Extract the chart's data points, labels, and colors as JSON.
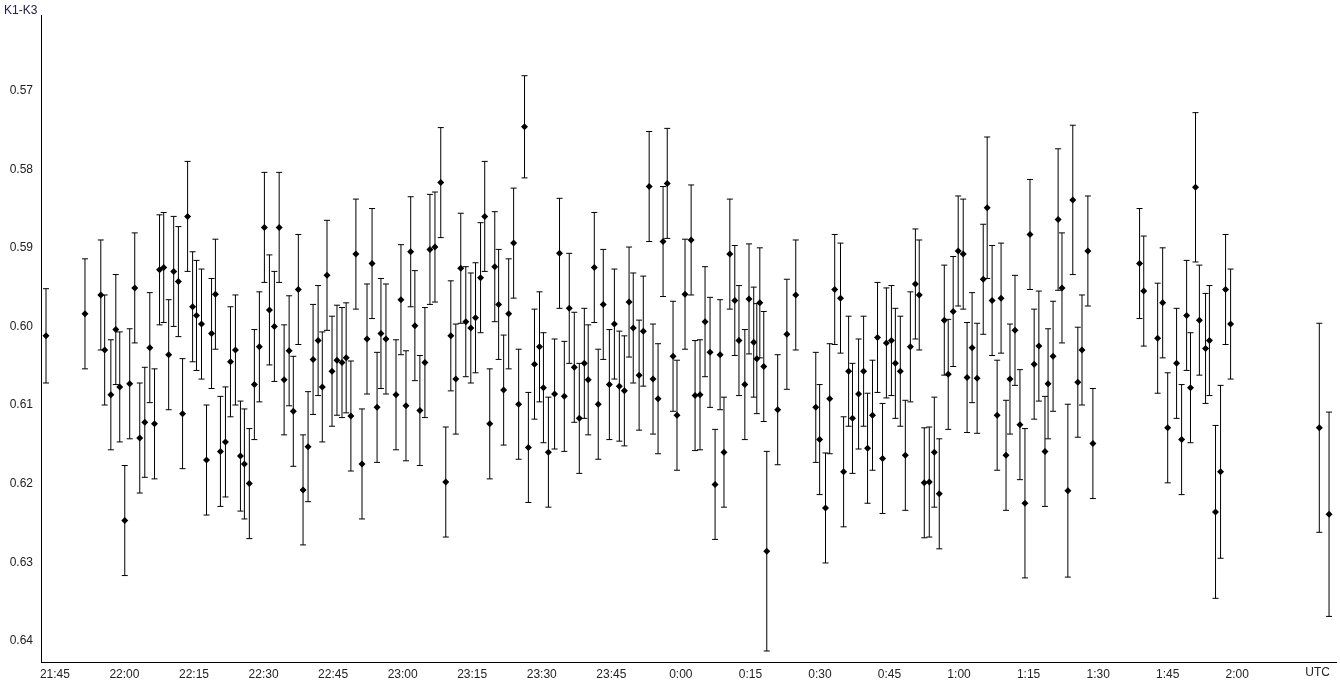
{
  "chart_data": {
    "type": "scatter",
    "ylabel": "K1-K3",
    "xlabel": "UTC",
    "color": "#000000",
    "marker": "diamond",
    "grid": false,
    "legend": false,
    "xlim": [
      "2000-01-01T21:42:00",
      "2000-01-02T02:21:18"
    ],
    "ylim": [
      0.6427,
      0.5604
    ],
    "xticks": [
      {
        "value": "2000-01-01T21:45",
        "label": "21:45"
      },
      {
        "value": "2000-01-01T22:00",
        "label": "22:00"
      },
      {
        "value": "2000-01-01T22:15",
        "label": "22:15"
      },
      {
        "value": "2000-01-01T22:30",
        "label": "22:30"
      },
      {
        "value": "2000-01-01T22:45",
        "label": "22:45"
      },
      {
        "value": "2000-01-01T23:00",
        "label": "23:00"
      },
      {
        "value": "2000-01-01T23:15",
        "label": "23:15"
      },
      {
        "value": "2000-01-01T23:30",
        "label": "23:30"
      },
      {
        "value": "2000-01-01T23:45",
        "label": "23:45"
      },
      {
        "value": "2000-01-02T00:00",
        "label": "0:00"
      },
      {
        "value": "2000-01-02T00:15",
        "label": "0:15"
      },
      {
        "value": "2000-01-02T00:30",
        "label": "0:30"
      },
      {
        "value": "2000-01-02T00:45",
        "label": "0:45"
      },
      {
        "value": "2000-01-02T01:00",
        "label": "1:00"
      },
      {
        "value": "2000-01-02T01:15",
        "label": "1:15"
      },
      {
        "value": "2000-01-02T01:30",
        "label": "1:30"
      },
      {
        "value": "2000-01-02T01:45",
        "label": "1:45"
      },
      {
        "value": "2000-01-02T02:00",
        "label": "2:00"
      }
    ],
    "yticks": [
      {
        "value": 0.57,
        "label": "0.57"
      },
      {
        "value": 0.58,
        "label": "0.58"
      },
      {
        "value": 0.59,
        "label": "0.59"
      },
      {
        "value": 0.6,
        "label": "0.60"
      },
      {
        "value": 0.61,
        "label": "0.61"
      },
      {
        "value": 0.62,
        "label": "0.62"
      },
      {
        "value": 0.63,
        "label": "0.63"
      },
      {
        "value": 0.64,
        "label": "0.64"
      }
    ],
    "x": [
      "2000-01-01T21:43:05",
      "2000-01-01T21:51:29",
      "2000-01-01T21:54:54",
      "2000-01-01T21:55:44",
      "2000-01-01T21:57:04",
      "2000-01-01T21:58:08",
      "2000-01-01T21:58:59",
      "2000-01-01T22:00:04",
      "2000-01-01T22:01:08",
      "2000-01-01T22:02:13",
      "2000-01-01T22:03:18",
      "2000-01-01T22:04:23",
      "2000-01-01T22:05:28",
      "2000-01-01T22:06:29",
      "2000-01-01T22:07:34",
      "2000-01-01T22:08:28",
      "2000-01-01T22:09:32",
      "2000-01-01T22:10:37",
      "2000-01-01T22:11:38",
      "2000-01-01T22:12:32",
      "2000-01-01T22:13:37",
      "2000-01-01T22:14:42",
      "2000-01-01T22:15:32",
      "2000-01-01T22:16:37",
      "2000-01-01T22:17:42",
      "2000-01-01T22:18:47",
      "2000-01-01T22:19:37",
      "2000-01-01T22:20:42",
      "2000-01-01T22:21:47",
      "2000-01-01T22:22:52",
      "2000-01-01T22:23:56",
      "2000-01-01T22:25:01",
      "2000-01-01T22:25:52",
      "2000-01-01T22:26:56",
      "2000-01-01T22:28:01",
      "2000-01-01T22:29:06",
      "2000-01-01T22:30:11",
      "2000-01-01T22:31:16",
      "2000-01-01T22:32:20",
      "2000-01-01T22:33:22",
      "2000-01-01T22:34:26",
      "2000-01-01T22:35:31",
      "2000-01-01T22:36:25",
      "2000-01-01T22:37:30",
      "2000-01-01T22:38:31",
      "2000-01-01T22:39:36",
      "2000-01-01T22:40:41",
      "2000-01-01T22:41:46",
      "2000-01-01T22:42:40",
      "2000-01-01T22:43:41",
      "2000-01-01T22:44:46",
      "2000-01-01T22:45:50",
      "2000-01-01T22:46:55",
      "2000-01-01T22:47:49",
      "2000-01-01T22:48:50",
      "2000-01-01T22:49:55",
      "2000-01-01T22:51:14",
      "2000-01-01T22:52:19",
      "2000-01-01T22:53:24",
      "2000-01-01T22:54:29",
      "2000-01-01T22:55:19",
      "2000-01-01T22:56:24",
      "2000-01-01T22:58:34",
      "2000-01-01T22:59:38",
      "2000-01-01T23:00:43",
      "2000-01-01T23:01:44",
      "2000-01-01T23:02:38",
      "2000-01-01T23:03:43",
      "2000-01-01T23:04:48",
      "2000-01-01T23:05:53",
      "2000-01-01T23:06:58",
      "2000-01-01T23:08:13",
      "2000-01-01T23:09:18",
      "2000-01-01T23:10:23",
      "2000-01-01T23:11:28",
      "2000-01-01T23:12:32",
      "2000-01-01T23:13:37",
      "2000-01-01T23:14:42",
      "2000-01-01T23:15:43",
      "2000-01-01T23:16:48",
      "2000-01-01T23:17:42",
      "2000-01-01T23:18:47",
      "2000-01-01T23:19:52",
      "2000-01-01T23:20:42",
      "2000-01-01T23:21:47",
      "2000-01-01T23:22:52",
      "2000-01-01T23:23:56",
      "2000-01-01T23:25:01",
      "2000-01-01T23:26:17",
      "2000-01-01T23:27:07",
      "2000-01-01T23:28:26",
      "2000-01-01T23:29:31",
      "2000-01-01T23:30:22",
      "2000-01-01T23:31:26",
      "2000-01-01T23:32:46",
      "2000-01-01T23:33:50",
      "2000-01-01T23:34:52",
      "2000-01-01T23:35:56",
      "2000-01-01T23:37:01",
      "2000-01-01T23:38:06",
      "2000-01-01T23:39:11",
      "2000-01-01T23:40:01",
      "2000-01-01T23:41:20",
      "2000-01-01T23:42:11",
      "2000-01-01T23:43:16",
      "2000-01-01T23:44:35",
      "2000-01-01T23:45:40",
      "2000-01-01T23:46:44",
      "2000-01-01T23:47:49",
      "2000-01-01T23:48:50",
      "2000-01-01T23:49:44",
      "2000-01-01T23:51:00",
      "2000-01-01T23:51:54",
      "2000-01-01T23:53:10",
      "2000-01-01T23:54:00",
      "2000-01-01T23:55:05",
      "2000-01-01T23:56:10",
      "2000-01-01T23:57:04",
      "2000-01-01T23:58:19",
      "2000-01-01T23:59:10",
      "2000-01-02T00:00:54",
      "2000-01-02T00:02:13",
      "2000-01-02T00:03:04",
      "2000-01-02T00:04:08",
      "2000-01-02T00:05:13",
      "2000-01-02T00:06:18",
      "2000-01-02T00:07:23",
      "2000-01-02T00:08:28",
      "2000-01-02T00:09:18",
      "2000-01-02T00:10:34",
      "2000-01-02T00:11:38",
      "2000-01-02T00:12:32",
      "2000-01-02T00:13:48",
      "2000-01-02T00:14:42",
      "2000-01-02T00:15:43",
      "2000-01-02T00:16:23",
      "2000-01-02T00:17:02",
      "2000-01-02T00:17:53",
      "2000-01-02T00:18:32",
      "2000-01-02T00:20:53",
      "2000-01-02T00:22:52",
      "2000-01-02T00:24:47",
      "2000-01-02T00:29:06",
      "2000-01-02T00:29:56",
      "2000-01-02T00:31:12",
      "2000-01-02T00:32:06",
      "2000-01-02T00:33:11",
      "2000-01-02T00:34:26",
      "2000-01-02T00:35:06",
      "2000-01-02T00:36:11",
      "2000-01-02T00:37:01",
      "2000-01-02T00:38:20",
      "2000-01-02T00:39:25",
      "2000-01-02T00:40:16",
      "2000-01-02T00:41:20",
      "2000-01-02T00:42:25",
      "2000-01-02T00:43:30",
      "2000-01-02T00:44:20",
      "2000-01-02T00:45:25",
      "2000-01-02T00:46:16",
      "2000-01-02T00:47:20",
      "2000-01-02T00:48:25",
      "2000-01-02T00:49:30",
      "2000-01-02T00:50:35",
      "2000-01-02T00:51:25",
      "2000-01-02T00:52:30",
      "2000-01-02T00:53:35",
      "2000-01-02T00:54:40",
      "2000-01-02T00:55:44",
      "2000-01-02T00:56:49",
      "2000-01-02T00:57:40",
      "2000-01-02T00:58:44",
      "2000-01-02T00:59:49",
      "2000-01-02T01:00:54",
      "2000-01-02T01:01:44",
      "2000-01-02T01:02:49",
      "2000-01-02T01:03:54",
      "2000-01-02T01:05:13",
      "2000-01-02T01:06:04",
      "2000-01-02T01:07:08",
      "2000-01-02T01:08:13",
      "2000-01-02T01:09:04",
      "2000-01-02T01:10:08",
      "2000-01-02T01:10:59",
      "2000-01-02T01:12:04",
      "2000-01-02T01:13:08",
      "2000-01-02T01:14:13",
      "2000-01-02T01:15:18",
      "2000-01-02T01:16:12",
      "2000-01-02T01:17:13",
      "2000-01-02T01:18:32",
      "2000-01-02T01:19:12",
      "2000-01-02T01:20:17",
      "2000-01-02T01:21:22",
      "2000-01-02T01:22:12",
      "2000-01-02T01:23:28",
      "2000-01-02T01:24:32",
      "2000-01-02T01:25:37",
      "2000-01-02T01:26:31",
      "2000-01-02T01:27:47",
      "2000-01-02T01:28:52",
      "2000-01-02T01:38:56",
      "2000-01-02T01:39:50",
      "2000-01-02T01:42:50",
      "2000-01-02T01:43:55",
      "2000-01-02T01:45:00",
      "2000-01-02T01:46:55",
      "2000-01-02T01:48:00",
      "2000-01-02T01:49:05",
      "2000-01-02T01:49:55",
      "2000-01-02T01:51:00",
      "2000-01-02T01:51:50",
      "2000-01-02T01:53:10",
      "2000-01-02T01:54:00",
      "2000-01-02T01:55:19",
      "2000-01-02T01:56:24",
      "2000-01-02T01:57:29",
      "2000-01-02T01:58:34",
      "2000-01-02T02:17:42",
      "2000-01-02T02:19:48"
    ],
    "values": [
      0.6012,
      0.5984,
      0.596,
      0.603,
      0.6087,
      0.6004,
      0.6077,
      0.6247,
      0.6073,
      0.5951,
      0.6142,
      0.6122,
      0.6027,
      0.6124,
      0.5928,
      0.5925,
      0.6036,
      0.593,
      0.5943,
      0.6111,
      0.586,
      0.5975,
      0.5986,
      0.5997,
      0.617,
      0.6009,
      0.5959,
      0.6159,
      0.6147,
      0.6045,
      0.603,
      0.6165,
      0.6175,
      0.62,
      0.6074,
      0.6026,
      0.5874,
      0.5979,
      0.6,
      0.5874,
      0.6068,
      0.6031,
      0.6108,
      0.5953,
      0.6208,
      0.6153,
      0.6042,
      0.6018,
      0.6077,
      0.5935,
      0.6057,
      0.6043,
      0.6046,
      0.604,
      0.6114,
      0.5908,
      0.6175,
      0.6016,
      0.592,
      0.6103,
      0.6009,
      0.6016,
      0.6087,
      0.5966,
      0.6101,
      0.5905,
      0.5999,
      0.6107,
      0.6046,
      0.5902,
      0.5899,
      0.5817,
      0.6198,
      0.6012,
      0.6067,
      0.5926,
      0.5994,
      0.6002,
      0.5989,
      0.5938,
      0.586,
      0.6124,
      0.5924,
      0.5972,
      0.6081,
      0.5984,
      0.5894,
      0.6099,
      0.5746,
      0.6154,
      0.6048,
      0.6026,
      0.6078,
      0.616,
      0.6086,
      0.5907,
      0.6089,
      0.5977,
      0.6052,
      0.6117,
      0.6047,
      0.6068,
      0.5925,
      0.6099,
      0.5972,
      0.6074,
      0.5997,
      0.6076,
      0.6082,
      0.5969,
      0.6002,
      0.6062,
      0.6006,
      0.5822,
      0.6067,
      0.6092,
      0.5892,
      0.5818,
      0.6038,
      0.6113,
      0.5959,
      0.589,
      0.6088,
      0.6087,
      0.5994,
      0.6033,
      0.6201,
      0.6036,
      0.616,
      0.5908,
      0.5967,
      0.6018,
      0.6074,
      0.5965,
      0.602,
      0.6041,
      0.597,
      0.6051,
      0.6286,
      0.6106,
      0.601,
      0.596,
      0.6103,
      0.6144,
      0.6231,
      0.6092,
      0.5953,
      0.5964,
      0.6185,
      0.6057,
      0.6117,
      0.6086,
      0.6057,
      0.6155,
      0.6113,
      0.6014,
      0.6168,
      0.6021,
      0.6018,
      0.6047,
      0.6057,
      0.6164,
      0.6026,
      0.5946,
      0.596,
      0.6199,
      0.6198,
      0.616,
      0.6213,
      0.5992,
      0.6061,
      0.5981,
      0.5904,
      0.5908,
      0.6065,
      0.6027,
      0.6066,
      0.594,
      0.5849,
      0.5967,
      0.6113,
      0.5964,
      0.6164,
      0.6067,
      0.6005,
      0.6125,
      0.6225,
      0.5883,
      0.6048,
      0.6025,
      0.6159,
      0.6073,
      0.6038,
      0.5864,
      0.5951,
      0.6209,
      0.5839,
      0.6071,
      0.603,
      0.5904,
      0.6149,
      0.592,
      0.5955,
      0.6015,
      0.597,
      0.6129,
      0.6047,
      0.6144,
      0.5986,
      0.6078,
      0.5823,
      0.5992,
      0.6028,
      0.6018,
      0.6236,
      0.6185,
      0.5953,
      0.5997,
      0.6129,
      0.6239
    ],
    "errors": [
      0.006,
      0.007,
      0.007,
      0.007,
      0.007,
      0.007,
      0.007,
      0.007,
      0.007,
      0.007,
      0.007,
      0.007,
      0.007,
      0.007,
      0.007,
      0.007,
      0.007,
      0.007,
      0.007,
      0.007,
      0.007,
      0.007,
      0.007,
      0.007,
      0.007,
      0.007,
      0.007,
      0.007,
      0.007,
      0.007,
      0.007,
      0.007,
      0.007,
      0.007,
      0.007,
      0.007,
      0.007,
      0.007,
      0.007,
      0.007,
      0.007,
      0.007,
      0.007,
      0.007,
      0.007,
      0.007,
      0.007,
      0.007,
      0.007,
      0.007,
      0.007,
      0.007,
      0.007,
      0.007,
      0.007,
      0.007,
      0.007,
      0.007,
      0.007,
      0.007,
      0.007,
      0.007,
      0.007,
      0.007,
      0.007,
      0.007,
      0.007,
      0.007,
      0.007,
      0.007,
      0.007,
      0.007,
      0.007,
      0.007,
      0.007,
      0.007,
      0.007,
      0.007,
      0.007,
      0.007,
      0.007,
      0.007,
      0.007,
      0.007,
      0.007,
      0.007,
      0.007,
      0.007,
      0.0065,
      0.007,
      0.007,
      0.007,
      0.007,
      0.007,
      0.007,
      0.007,
      0.007,
      0.007,
      0.007,
      0.007,
      0.007,
      0.007,
      0.007,
      0.007,
      0.007,
      0.007,
      0.007,
      0.007,
      0.007,
      0.007,
      0.007,
      0.007,
      0.007,
      0.007,
      0.007,
      0.007,
      0.007,
      0.007,
      0.007,
      0.007,
      0.007,
      0.007,
      0.007,
      0.007,
      0.007,
      0.007,
      0.007,
      0.007,
      0.007,
      0.007,
      0.007,
      0.007,
      0.007,
      0.007,
      0.007,
      0.007,
      0.007,
      0.007,
      0.0127,
      0.007,
      0.007,
      0.007,
      0.007,
      0.007,
      0.007,
      0.007,
      0.007,
      0.007,
      0.007,
      0.007,
      0.007,
      0.007,
      0.007,
      0.007,
      0.007,
      0.007,
      0.007,
      0.007,
      0.007,
      0.007,
      0.007,
      0.007,
      0.007,
      0.007,
      0.007,
      0.007,
      0.007,
      0.007,
      0.007,
      0.007,
      0.007,
      0.007,
      0.007,
      0.007,
      0.007,
      0.007,
      0.007,
      0.007,
      0.009,
      0.007,
      0.007,
      0.007,
      0.007,
      0.007,
      0.007,
      0.007,
      0.0095,
      0.007,
      0.007,
      0.007,
      0.007,
      0.007,
      0.007,
      0.009,
      0.007,
      0.011,
      0.0095,
      0.007,
      0.007,
      0.007,
      0.007,
      0.007,
      0.007,
      0.007,
      0.007,
      0.007,
      0.007,
      0.007,
      0.007,
      0.007,
      0.0095,
      0.007,
      0.007,
      0.007,
      0.011,
      0.011,
      0.007,
      0.007,
      0.0133,
      0.013
    ]
  }
}
